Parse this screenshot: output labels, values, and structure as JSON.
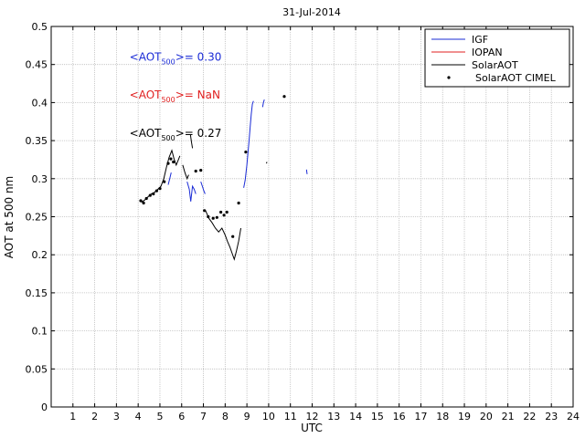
{
  "chart_data": {
    "type": "line",
    "title": "31-Jul-2014",
    "xlabel": "UTC",
    "ylabel": "AOT at 500 nm",
    "xlim": [
      0,
      24
    ],
    "ylim": [
      0,
      0.5
    ],
    "x_ticks": [
      "1",
      "2",
      "3",
      "4",
      "5",
      "6",
      "7",
      "8",
      "9",
      "10",
      "11",
      "12",
      "13",
      "14",
      "15",
      "16",
      "17",
      "18",
      "19",
      "20",
      "21",
      "22",
      "23",
      "24"
    ],
    "y_ticks": [
      "0",
      "0.05",
      "0.1",
      "0.15",
      "0.2",
      "0.25",
      "0.3",
      "0.35",
      "0.4",
      "0.45",
      "0.5"
    ],
    "grid": true,
    "legend_position": "top-right",
    "colors": {
      "IGF": "#1a2bd6",
      "IOPAN": "#e02020",
      "SolarAOT": "#000000",
      "SolarAOT CIMEL": "#000000"
    },
    "annotations": [
      {
        "prefix": "<AOT",
        "sub": "500",
        "suffix": ">= 0.30",
        "color": "#1a2bd6",
        "x": 3.6,
        "y": 0.455
      },
      {
        "prefix": "<AOT",
        "sub": "500",
        "suffix": ">=  NaN",
        "color": "#e02020",
        "x": 3.6,
        "y": 0.405
      },
      {
        "prefix": "<AOT",
        "sub": "500",
        "suffix": ">= 0.27",
        "color": "#000000",
        "x": 3.6,
        "y": 0.355
      }
    ],
    "series": [
      {
        "name": "IGF",
        "style": "line",
        "segments": [
          [
            [
              5.38,
              0.292
            ],
            [
              5.45,
              0.3
            ],
            [
              5.52,
              0.308
            ]
          ],
          [
            [
              6.25,
              0.296
            ],
            [
              6.35,
              0.286
            ],
            [
              6.42,
              0.27
            ],
            [
              6.5,
              0.29
            ],
            [
              6.58,
              0.286
            ],
            [
              6.65,
              0.28
            ]
          ],
          [
            [
              6.88,
              0.296
            ],
            [
              6.95,
              0.29
            ],
            [
              7.02,
              0.284
            ],
            [
              7.08,
              0.28
            ]
          ],
          [
            [
              8.85,
              0.288
            ],
            [
              8.92,
              0.298
            ],
            [
              9.0,
              0.318
            ],
            [
              9.05,
              0.334
            ],
            [
              9.1,
              0.35
            ],
            [
              9.15,
              0.368
            ],
            [
              9.2,
              0.385
            ],
            [
              9.25,
              0.398
            ],
            [
              9.3,
              0.402
            ]
          ],
          [
            [
              9.72,
              0.394
            ],
            [
              9.76,
              0.4
            ],
            [
              9.8,
              0.404
            ]
          ],
          [
            [
              11.74,
              0.312
            ],
            [
              11.77,
              0.306
            ]
          ]
        ]
      },
      {
        "name": "IOPAN",
        "style": "line",
        "segments": []
      },
      {
        "name": "SolarAOT",
        "style": "line",
        "segments": [
          [
            [
              4.15,
              0.269
            ],
            [
              4.3,
              0.272
            ],
            [
              4.45,
              0.276
            ],
            [
              4.6,
              0.28
            ],
            [
              4.75,
              0.282
            ],
            [
              4.9,
              0.286
            ],
            [
              5.05,
              0.29
            ],
            [
              5.18,
              0.3
            ],
            [
              5.3,
              0.315
            ],
            [
              5.42,
              0.328
            ],
            [
              5.55,
              0.337
            ],
            [
              5.65,
              0.326
            ],
            [
              5.75,
              0.318
            ],
            [
              5.85,
              0.325
            ],
            [
              5.92,
              0.33
            ]
          ],
          [
            [
              6.4,
              0.358
            ],
            [
              6.45,
              0.348
            ],
            [
              6.5,
              0.34
            ]
          ],
          [
            [
              6.05,
              0.318
            ],
            [
              6.15,
              0.308
            ],
            [
              6.25,
              0.3
            ],
            [
              6.32,
              0.305
            ]
          ],
          [
            [
              7.1,
              0.258
            ],
            [
              7.25,
              0.248
            ],
            [
              7.4,
              0.242
            ],
            [
              7.55,
              0.235
            ],
            [
              7.7,
              0.23
            ],
            [
              7.85,
              0.235
            ],
            [
              8.0,
              0.226
            ],
            [
              8.1,
              0.218
            ],
            [
              8.22,
              0.21
            ],
            [
              8.32,
              0.202
            ],
            [
              8.42,
              0.194
            ],
            [
              8.52,
              0.205
            ],
            [
              8.62,
              0.218
            ],
            [
              8.72,
              0.235
            ]
          ],
          [
            [
              9.9,
              0.32
            ],
            [
              9.92,
              0.322
            ]
          ]
        ]
      },
      {
        "name": "SolarAOT CIMEL",
        "style": "dots",
        "points": [
          [
            4.12,
            0.271
          ],
          [
            4.25,
            0.268
          ],
          [
            4.38,
            0.274
          ],
          [
            4.55,
            0.278
          ],
          [
            4.7,
            0.28
          ],
          [
            4.85,
            0.284
          ],
          [
            5.0,
            0.287
          ],
          [
            5.2,
            0.296
          ],
          [
            5.38,
            0.32
          ],
          [
            5.5,
            0.326
          ],
          [
            5.62,
            0.322
          ],
          [
            6.65,
            0.31
          ],
          [
            6.88,
            0.311
          ],
          [
            7.05,
            0.258
          ],
          [
            7.22,
            0.25
          ],
          [
            7.45,
            0.248
          ],
          [
            7.62,
            0.249
          ],
          [
            7.8,
            0.256
          ],
          [
            7.95,
            0.252
          ],
          [
            8.08,
            0.256
          ],
          [
            8.35,
            0.224
          ],
          [
            8.62,
            0.268
          ],
          [
            8.95,
            0.335
          ],
          [
            10.72,
            0.408
          ]
        ]
      }
    ]
  }
}
